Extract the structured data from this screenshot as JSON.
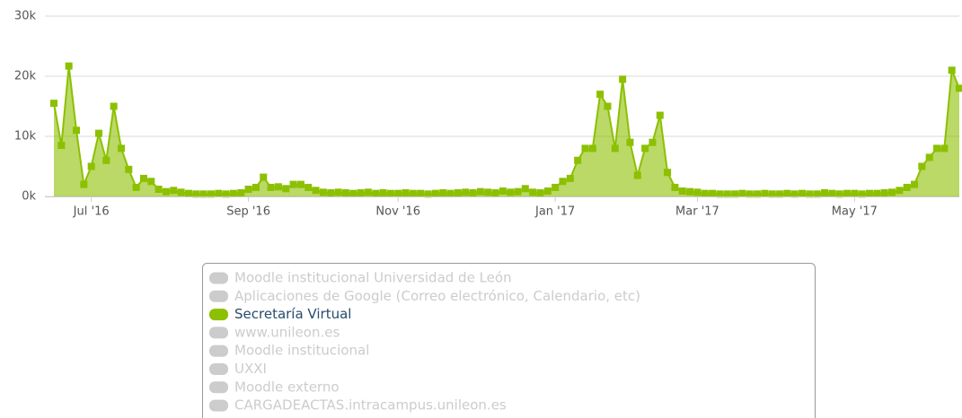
{
  "chart_data": {
    "type": "area",
    "categories": [
      null,
      null,
      null,
      null,
      null,
      "Jul '16",
      null,
      null,
      null,
      null,
      null,
      null,
      null,
      null,
      null,
      null,
      null,
      null,
      null,
      null,
      null,
      null,
      null,
      null,
      null,
      null,
      "Sep '16",
      null,
      null,
      null,
      null,
      null,
      null,
      null,
      null,
      null,
      null,
      null,
      null,
      null,
      null,
      null,
      null,
      null,
      null,
      null,
      "Nov '16",
      null,
      null,
      null,
      null,
      null,
      null,
      null,
      null,
      null,
      null,
      null,
      null,
      null,
      null,
      null,
      null,
      null,
      null,
      null,
      null,
      "Jan '17",
      null,
      null,
      null,
      null,
      null,
      null,
      null,
      null,
      null,
      null,
      null,
      null,
      null,
      null,
      null,
      null,
      null,
      null,
      "Mar '17",
      null,
      null,
      null,
      null,
      null,
      null,
      null,
      null,
      null,
      null,
      null,
      null,
      null,
      null,
      null,
      null,
      null,
      null,
      null,
      null,
      "May '17",
      null,
      null,
      null,
      null,
      null,
      null,
      null,
      null,
      null,
      null,
      null,
      null,
      null,
      null
    ],
    "series": [
      {
        "name": "Moodle institucional Universidad de León",
        "visible": false
      },
      {
        "name": "Aplicaciones de Google (Correo electrónico, Calendario, etc)",
        "visible": false
      },
      {
        "name": "Secretaría Virtual",
        "visible": true,
        "color": "#8cc000",
        "values": [
          15500,
          8500,
          21700,
          11000,
          2000,
          5000,
          10500,
          6000,
          15000,
          8000,
          4500,
          1500,
          3000,
          2500,
          1200,
          800,
          1000,
          700,
          500,
          400,
          400,
          400,
          500,
          400,
          500,
          600,
          1200,
          1500,
          3200,
          1500,
          1600,
          1300,
          2000,
          2000,
          1500,
          1000,
          700,
          600,
          700,
          600,
          500,
          600,
          700,
          500,
          600,
          500,
          500,
          600,
          500,
          500,
          400,
          500,
          600,
          500,
          600,
          700,
          600,
          800,
          700,
          600,
          900,
          700,
          800,
          1300,
          700,
          600,
          900,
          1500,
          2500,
          3000,
          6000,
          8000,
          8000,
          17000,
          15000,
          8000,
          19500,
          9000,
          3500,
          8000,
          9000,
          13500,
          4000,
          1500,
          900,
          800,
          700,
          500,
          500,
          400,
          400,
          400,
          500,
          400,
          400,
          500,
          400,
          400,
          500,
          400,
          500,
          400,
          400,
          600,
          500,
          400,
          500,
          500,
          400,
          500,
          500,
          600,
          700,
          1000,
          1500,
          2000,
          5000,
          6500,
          8000,
          8000,
          21000,
          18000
        ]
      },
      {
        "name": "www.unileon.es",
        "visible": false
      },
      {
        "name": "Moodle institucional",
        "visible": false
      },
      {
        "name": "UXXI",
        "visible": false
      },
      {
        "name": "Moodle externo",
        "visible": false
      },
      {
        "name": "CARGADEACTAS.intracampus.unileon.es",
        "visible": false
      }
    ],
    "ylim": [
      0,
      30000
    ],
    "yticks": [
      {
        "value": 0,
        "label": "0k"
      },
      {
        "value": 10000,
        "label": "10k"
      },
      {
        "value": 20000,
        "label": "20k"
      },
      {
        "value": 30000,
        "label": "30k"
      }
    ],
    "grid": true
  }
}
